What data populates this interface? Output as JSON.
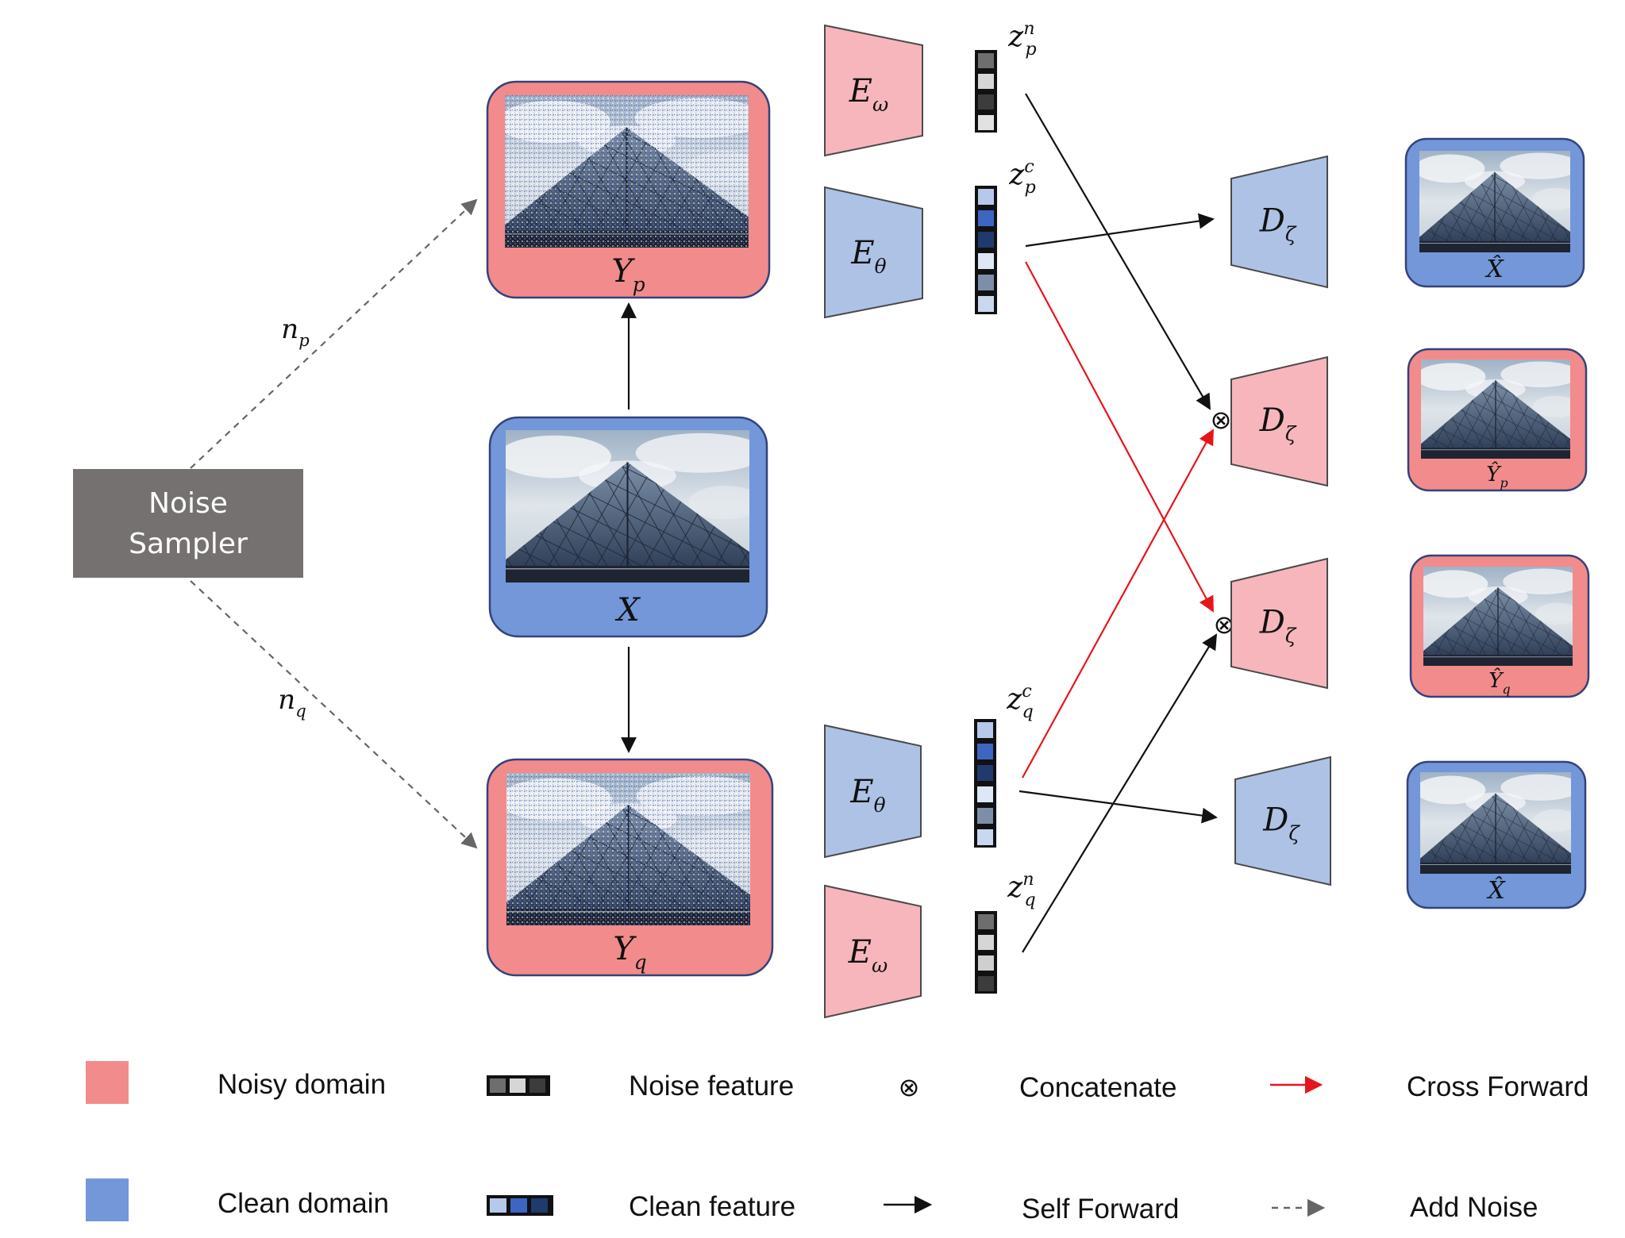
{
  "colors": {
    "noisy": "#f28b8b",
    "noisy_trap": "#f7b6bc",
    "clean": "#7397d8",
    "clean_trap": "#aec2e6",
    "sampler": "#757170",
    "cross_forward": "#e8141b",
    "self_forward": "#111111",
    "add_noise": "#666666"
  },
  "noise_sampler": {
    "line1": "Noise",
    "line2": "Sampler"
  },
  "noise_labels": {
    "p": "n",
    "p_sub": "p",
    "q": "n",
    "q_sub": "q"
  },
  "images": {
    "yp": {
      "label": "Y",
      "sub": "p"
    },
    "x": {
      "label": "X",
      "sub": ""
    },
    "yq": {
      "label": "Y",
      "sub": "q"
    }
  },
  "encoders": [
    {
      "id": "enc-omega-top",
      "symbol": "E",
      "sub": "ω",
      "domain": "noisy"
    },
    {
      "id": "enc-theta-top",
      "symbol": "E",
      "sub": "θ",
      "domain": "clean"
    },
    {
      "id": "enc-theta-bottom",
      "symbol": "E",
      "sub": "θ",
      "domain": "clean"
    },
    {
      "id": "enc-omega-bottom",
      "symbol": "E",
      "sub": "ω",
      "domain": "noisy"
    }
  ],
  "features": {
    "zpn": {
      "base": "z",
      "sup": "n",
      "sub": "p",
      "cells": [
        "#6e6e6e",
        "#d6d6d6",
        "#3c3c3c",
        "#e2e2e2"
      ]
    },
    "zpc": {
      "base": "z",
      "sup": "c",
      "sub": "p",
      "cells": [
        "#b7c9ea",
        "#3c66c2",
        "#1f3b6e",
        "#dde7f6",
        "#7d8fa8",
        "#c9d7ef"
      ]
    },
    "zqc": {
      "base": "z",
      "sup": "c",
      "sub": "q",
      "cells": [
        "#b7c9ea",
        "#3c66c2",
        "#1f3b6e",
        "#dde7f6",
        "#7d8fa8",
        "#c9d7ef"
      ]
    },
    "zqn": {
      "base": "z",
      "sup": "n",
      "sub": "q",
      "cells": [
        "#6e6e6e",
        "#d6d6d6",
        "#cfcfcf",
        "#3c3c3c"
      ]
    }
  },
  "decoders": [
    {
      "id": "dec-1",
      "symbol": "D",
      "sub": "ζ",
      "domain": "clean"
    },
    {
      "id": "dec-2",
      "symbol": "D",
      "sub": "ζ",
      "domain": "noisy"
    },
    {
      "id": "dec-3",
      "symbol": "D",
      "sub": "ζ",
      "domain": "noisy"
    },
    {
      "id": "dec-4",
      "symbol": "D",
      "sub": "ζ",
      "domain": "clean"
    }
  ],
  "outputs": [
    {
      "label": "X̂",
      "sub": "",
      "domain": "clean"
    },
    {
      "label": "Ŷ",
      "sub": "p",
      "domain": "noisy"
    },
    {
      "label": "Ŷ",
      "sub": "q",
      "domain": "noisy"
    },
    {
      "label": "X̂",
      "sub": "",
      "domain": "clean"
    }
  ],
  "concat_symbol": "⊗",
  "legend": {
    "noisy_domain": "Noisy domain",
    "clean_domain": "Clean domain",
    "noise_feature": "Noise feature",
    "clean_feature": "Clean feature",
    "concatenate": "Concatenate",
    "self_forward": "Self Forward",
    "cross_forward": "Cross Forward",
    "add_noise": "Add Noise",
    "concat_symbol": "⊗"
  }
}
